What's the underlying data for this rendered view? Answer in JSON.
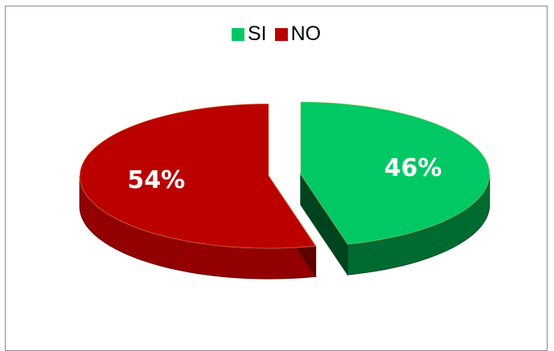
{
  "chart_data": {
    "type": "pie",
    "title": "",
    "categories": [
      "SI",
      "NO"
    ],
    "values": [
      46,
      54
    ],
    "data_labels": [
      "46%",
      "54%"
    ],
    "legend_position": "top",
    "style": "3d-exploded",
    "colors": {
      "SI": {
        "top": "#00c864",
        "side": "#006b30",
        "side_dark": "#00441e"
      },
      "NO": {
        "top": "#bb0000",
        "side": "#930000",
        "side_dark": "#5e0000"
      }
    }
  }
}
